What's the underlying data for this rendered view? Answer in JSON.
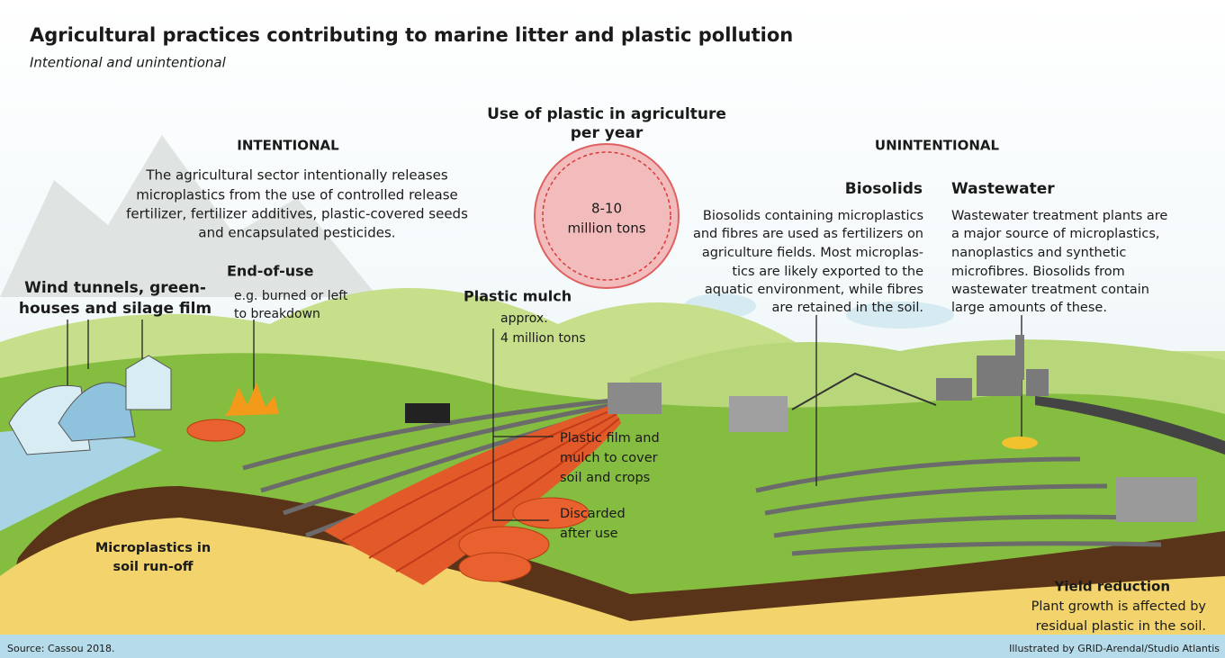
{
  "title": "Agricultural practices contributing to marine litter and plastic pollution",
  "subtitle": "Intentional and unintentional",
  "center": {
    "heading": [
      "Use of plastic in agriculture",
      "per year"
    ],
    "circle": [
      "8-10",
      "million tons"
    ]
  },
  "intentional": {
    "heading": "INTENTIONAL",
    "text": [
      "The agricultural sector intentionally releases",
      "microplastics from the use of controlled release",
      "fertilizer, fertilizer additives, plastic-covered seeds",
      "and encapsulated pesticides."
    ]
  },
  "unintentional": {
    "heading": "UNINTENTIONAL"
  },
  "biosolids": {
    "heading": "Biosolids",
    "text": [
      "Biosolids containing microplastics",
      "and fibres are used as fertilizers on",
      "agriculture fields. Most microplas-",
      "tics are likely exported to the",
      "aquatic environment, while fibres",
      "are retained in the soil."
    ]
  },
  "wastewater": {
    "heading": "Wastewater",
    "text": [
      "Wastewater treatment plants are",
      "a major source of microplastics,",
      "nanoplastics and synthetic",
      "microfibres. Biosolids from",
      "wastewater treatment contain",
      "large amounts of these."
    ]
  },
  "wind_tunnels": [
    "Wind tunnels, green-",
    "houses and silage film"
  ],
  "end_of_use": {
    "heading": "End-of-use",
    "text": [
      "e.g. burned or left",
      "to breakdown"
    ]
  },
  "plastic_mulch": {
    "heading": "Plastic mulch",
    "text": [
      "approx.",
      "4 million tons"
    ]
  },
  "plastic_film": [
    "Plastic film and",
    "mulch to cover",
    "soil and crops"
  ],
  "discarded": [
    "Discarded",
    "after use"
  ],
  "microplastics_runoff": [
    "Microplastics in",
    "soil run-off"
  ],
  "yield_reduction": {
    "heading": "Yield reduction",
    "text": [
      "Plant growth is affected by",
      "residual plastic in the soil."
    ]
  },
  "source": "Source: Cassou 2018.",
  "credit": "Illustrated by GRID-Arendal/Studio Atlantis"
}
